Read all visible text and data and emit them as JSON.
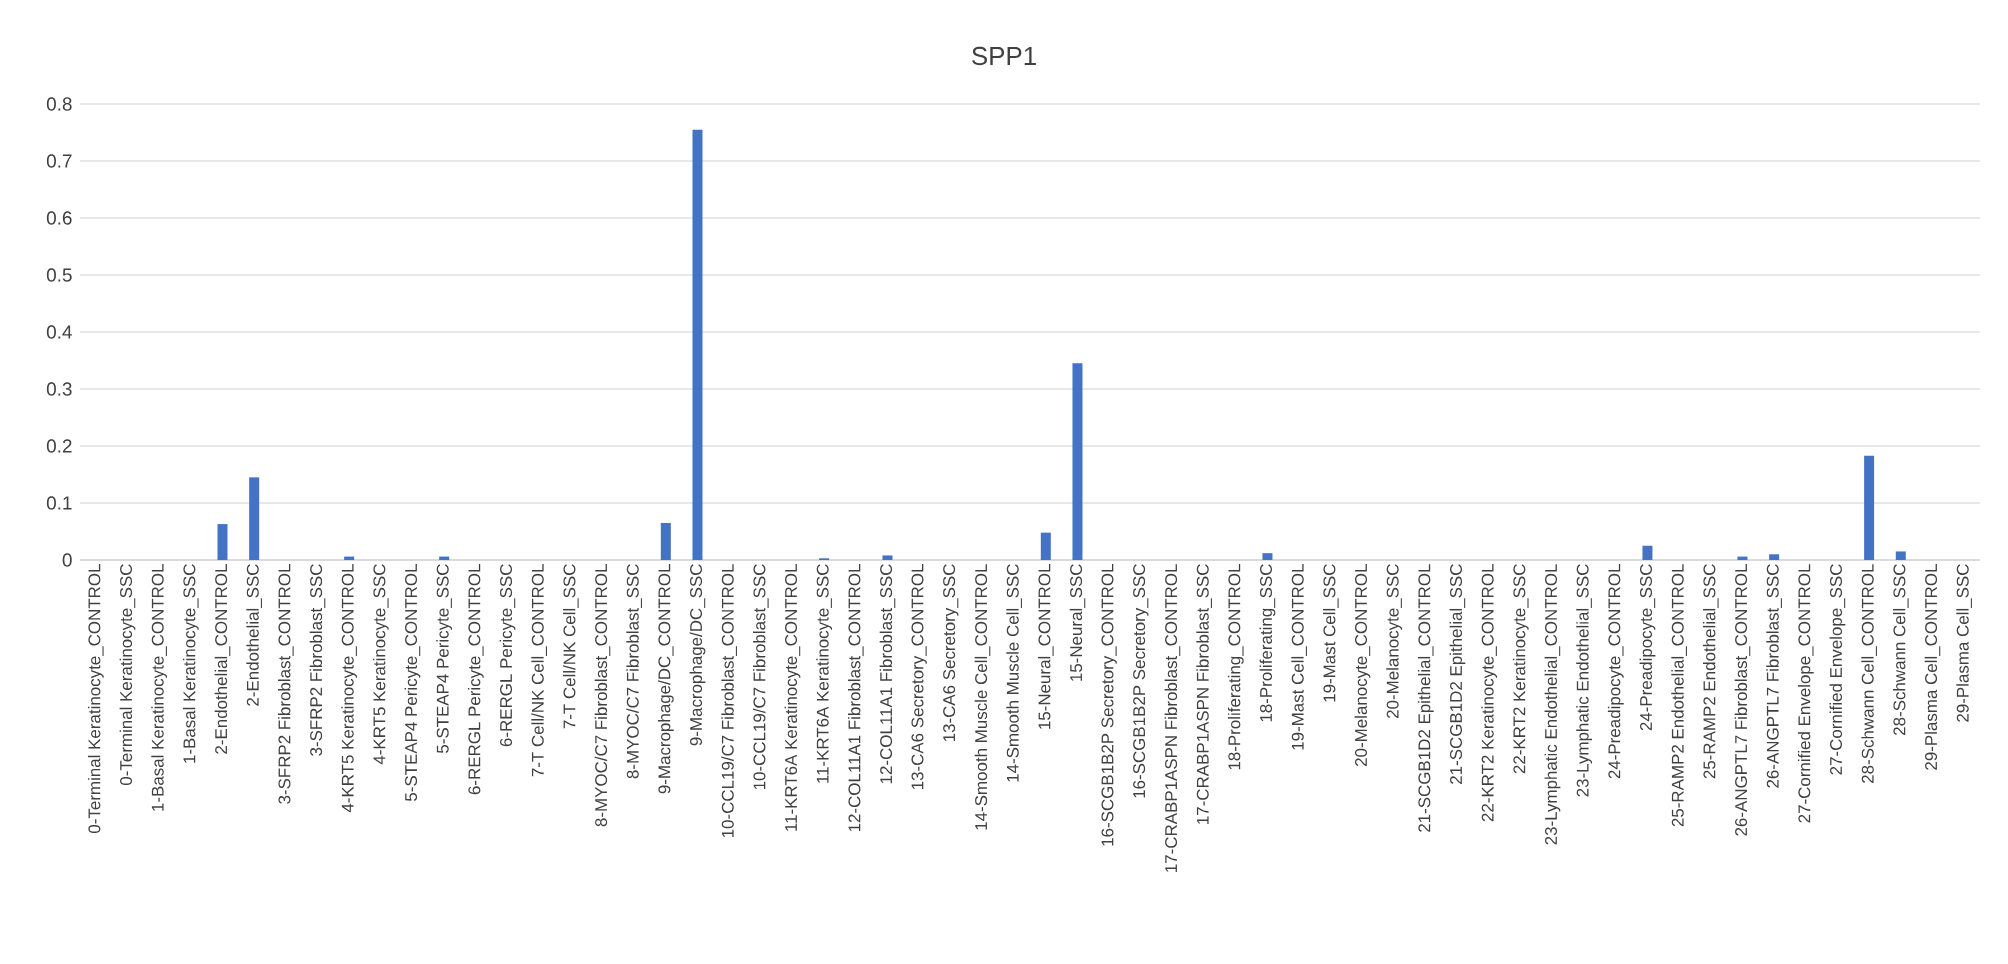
{
  "chart_data": {
    "type": "bar",
    "title": "SPP1",
    "categories": [
      "0-Terminal Keratinocyte_CONTROL",
      "0-Terminal Keratinocyte_SSC",
      "1-Basal Keratinocyte_CONTROL",
      "1-Basal Keratinocyte_SSC",
      "2-Endothelial_CONTROL",
      "2-Endothelial_SSC",
      "3-SFRP2 Fibroblast_CONTROL",
      "3-SFRP2 Fibroblast_SSC",
      "4-KRT5 Keratinocyte_CONTROL",
      "4-KRT5 Keratinocyte_SSC",
      "5-STEAP4 Pericyte_CONTROL",
      "5-STEAP4 Pericyte_SSC",
      "6-RERGL Pericyte_CONTROL",
      "6-RERGL Pericyte_SSC",
      "7-T Cell/NK Cell_CONTROL",
      "7-T Cell/NK Cell_SSC",
      "8-MYOC/C7 Fibroblast_CONTROL",
      "8-MYOC/C7 Fibroblast_SSC",
      "9-Macrophage/DC_CONTROL",
      "9-Macrophage/DC_SSC",
      "10-CCL19/C7 Fibroblast_CONTROL",
      "10-CCL19/C7 Fibroblast_SSC",
      "11-KRT6A Keratinocyte_CONTROL",
      "11-KRT6A Keratinocyte_SSC",
      "12-COL11A1 Fibroblast_CONTROL",
      "12-COL11A1 Fibroblast_SSC",
      "13-CA6 Secretory_CONTROL",
      "13-CA6 Secretory_SSC",
      "14-Smooth Muscle Cell_CONTROL",
      "14-Smooth Muscle Cell_SSC",
      "15-Neural_CONTROL",
      "15-Neural_SSC",
      "16-SCGB1B2P Secretory_CONTROL",
      "16-SCGB1B2P Secretory_SSC",
      "17-CRABP1ASPN Fibroblast_CONTROL",
      "17-CRABP1ASPN Fibroblast_SSC",
      "18-Proliferating_CONTROL",
      "18-Proliferating_SSC",
      "19-Mast Cell_CONTROL",
      "19-Mast Cell_SSC",
      "20-Melanocyte_CONTROL",
      "20-Melanocyte_SSC",
      "21-SCGB1D2 Epithelial_CONTROL",
      "21-SCGB1D2 Epithelial_SSC",
      "22-KRT2 Keratinocyte_CONTROL",
      "22-KRT2 Keratinocyte_SSC",
      "23-Lymphatic Endothelial_CONTROL",
      "23-Lymphatic Endothelial_SSC",
      "24-Preadipocyte_CONTROL",
      "24-Preadipocyte_SSC",
      "25-RAMP2 Endothelial_CONTROL",
      "25-RAMP2 Endothelial_SSC",
      "26-ANGPTL7 Fibroblast_CONTROL",
      "26-ANGPTL7 Fibroblast_SSC",
      "27-Cornified Envelope_CONTROL",
      "27-Cornified Envelope_SSC",
      "28-Schwann Cell_CONTROL",
      "28-Schwann Cell_SSC",
      "29-Plasma Cell_CONTROL",
      "29-Plasma Cell_SSC"
    ],
    "values": [
      0,
      0,
      0,
      0,
      0.063,
      0.145,
      0,
      0,
      0.006,
      0,
      0,
      0.006,
      0,
      0,
      0,
      0,
      0,
      0,
      0.065,
      0.755,
      0,
      0,
      0,
      0.003,
      0,
      0.008,
      0,
      0,
      0,
      0,
      0.048,
      0.345,
      0,
      0,
      0,
      0,
      0,
      0.012,
      0,
      0,
      0,
      0,
      0,
      0,
      0,
      0,
      0,
      0,
      0,
      0.025,
      0,
      0,
      0.006,
      0.01,
      0,
      0,
      0.183,
      0.015,
      0,
      0
    ],
    "color": "#4472c4",
    "ylim": [
      0,
      0.8
    ],
    "yticks": [
      0,
      0.1,
      0.2,
      0.3,
      0.4,
      0.5,
      0.6,
      0.7,
      0.8
    ],
    "grid": "y"
  }
}
